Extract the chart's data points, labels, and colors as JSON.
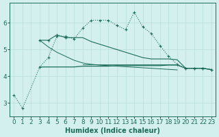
{
  "x_all": [
    0,
    1,
    2,
    3,
    4,
    5,
    6,
    7,
    8,
    9,
    10,
    11,
    12,
    13,
    14,
    15,
    16,
    17,
    18,
    19,
    20,
    21,
    22,
    23
  ],
  "dotted_markers": [
    3.3,
    2.8,
    null,
    null,
    null,
    null,
    null,
    null,
    null,
    null,
    null,
    null,
    null,
    null,
    null,
    null,
    null,
    null,
    null,
    null,
    null,
    null,
    null,
    null
  ],
  "dotted_main": [
    null,
    null,
    null,
    4.35,
    4.7,
    5.5,
    5.5,
    5.4,
    5.8,
    6.1,
    6.1,
    6.1,
    5.9,
    5.75,
    6.4,
    5.85,
    5.6,
    5.15,
    4.75,
    4.45,
    4.3,
    4.3,
    4.3,
    4.25
  ],
  "line_upper_markers": [
    null,
    null,
    null,
    5.35,
    5.35,
    5.55,
    5.45,
    null,
    null,
    null,
    null,
    null,
    null,
    null,
    null,
    null,
    null,
    null,
    null,
    null,
    null,
    null,
    null,
    null
  ],
  "line_upper": [
    null,
    null,
    null,
    5.35,
    5.35,
    5.55,
    5.45,
    5.45,
    5.45,
    5.3,
    5.2,
    5.1,
    5.0,
    4.9,
    4.8,
    4.7,
    4.65,
    4.65,
    4.65,
    4.62,
    4.3,
    4.3,
    4.3,
    4.25
  ],
  "line_mid": [
    null,
    null,
    null,
    5.35,
    5.1,
    4.9,
    4.75,
    4.6,
    4.5,
    4.45,
    4.42,
    4.4,
    4.38,
    4.36,
    4.34,
    4.32,
    4.3,
    4.28,
    4.26,
    4.24,
    null,
    null,
    null,
    null
  ],
  "line_flat": [
    null,
    null,
    null,
    4.35,
    4.35,
    4.35,
    4.35,
    4.35,
    4.38,
    4.38,
    4.38,
    4.38,
    4.4,
    4.4,
    4.4,
    4.4,
    4.4,
    4.4,
    4.42,
    4.42,
    4.3,
    4.3,
    4.3,
    4.25
  ],
  "line_flat2": [
    null,
    null,
    null,
    null,
    null,
    null,
    null,
    null,
    4.45,
    4.45,
    4.45,
    4.45,
    4.45,
    4.45,
    4.45,
    4.45,
    4.45,
    4.45,
    4.45,
    4.45,
    null,
    null,
    null,
    null
  ],
  "background_color": "#d4f0ee",
  "grid_color": "#b8dcd8",
  "line_color": "#1a6b5a",
  "xlabel": "Humidex (Indice chaleur)",
  "xlim": [
    -0.5,
    23.5
  ],
  "ylim": [
    2.5,
    6.75
  ],
  "yticks": [
    3,
    4,
    5,
    6
  ],
  "xticks": [
    0,
    1,
    2,
    3,
    4,
    5,
    6,
    7,
    8,
    9,
    10,
    11,
    12,
    13,
    14,
    15,
    16,
    17,
    18,
    19,
    20,
    21,
    22,
    23
  ],
  "font_size": 6.5,
  "xlabel_fontsize": 7
}
